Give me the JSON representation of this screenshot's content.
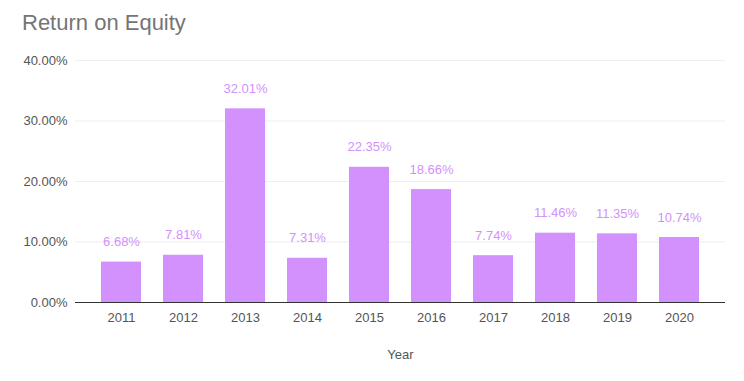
{
  "chart_data": {
    "type": "bar",
    "title": "Return on Equity",
    "x_label": "Year",
    "categories": [
      "2011",
      "2012",
      "2013",
      "2014",
      "2015",
      "2016",
      "2017",
      "2018",
      "2019",
      "2020"
    ],
    "values": [
      6.68,
      7.81,
      32.01,
      7.31,
      22.35,
      18.66,
      7.74,
      11.46,
      11.35,
      10.74
    ],
    "value_labels": [
      "6.68%",
      "7.81%",
      "32.01%",
      "7.31%",
      "22.35%",
      "18.66%",
      "7.74%",
      "11.46%",
      "11.35%",
      "10.74%"
    ],
    "color": "#d291fc",
    "ylim": [
      0,
      40
    ],
    "yticks": [
      {
        "value": 0,
        "label": "0.00%"
      },
      {
        "value": 10,
        "label": "10.00%"
      },
      {
        "value": 20,
        "label": "20.00%"
      },
      {
        "value": 30,
        "label": "30.00%"
      },
      {
        "value": 40,
        "label": "40.00%"
      }
    ],
    "grid": true,
    "data_labels": true
  }
}
